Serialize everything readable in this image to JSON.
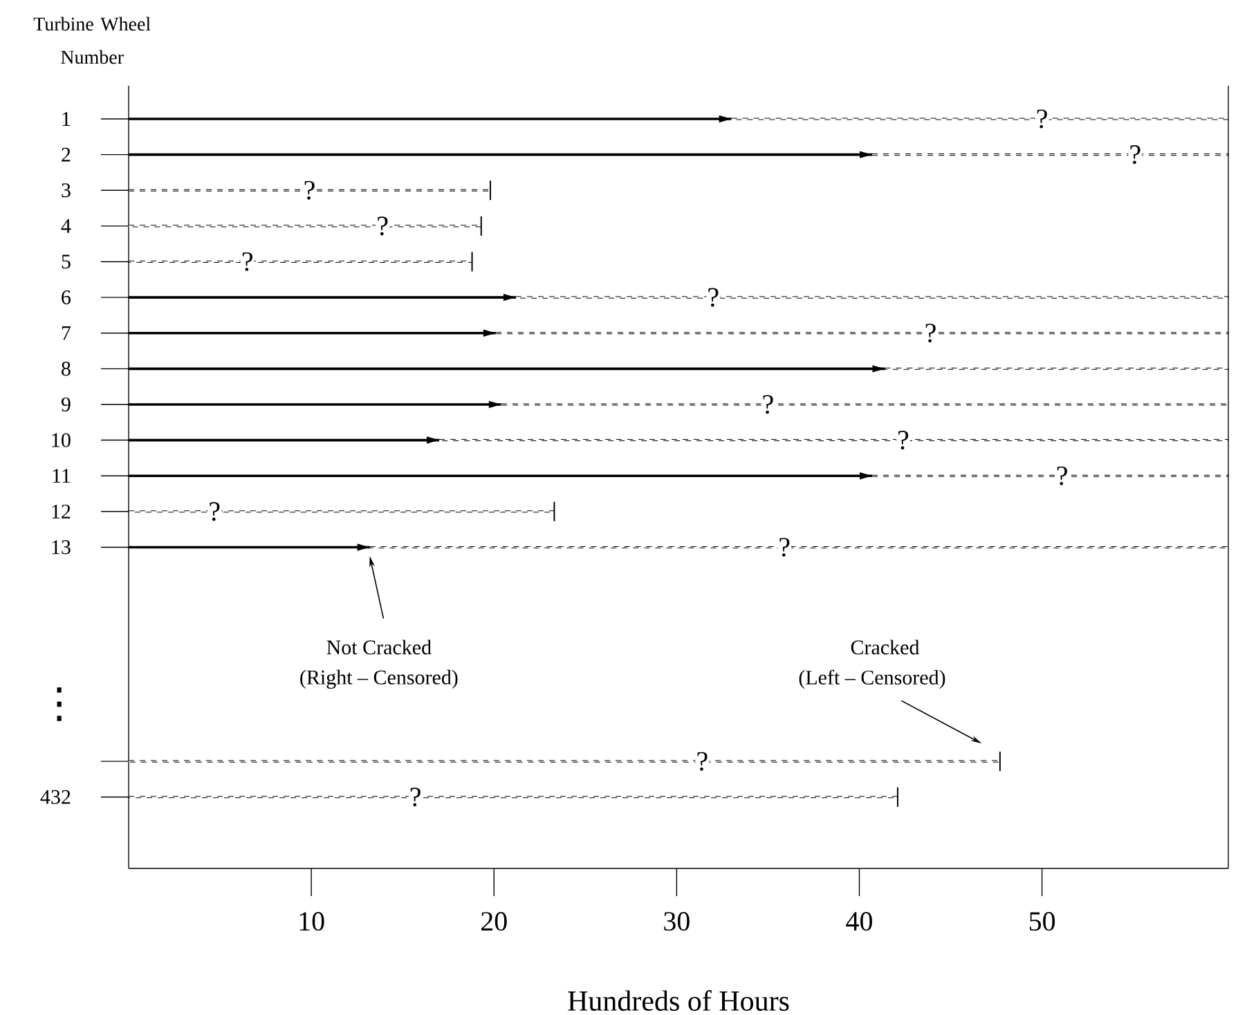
{
  "chart_data": {
    "type": "bar",
    "orientation": "horizontal",
    "stacked": true,
    "xlabel": "Hundreds of Hours",
    "ylabel": "Turbine Wheel Number",
    "categories": [
      "1",
      "2",
      "3",
      "4",
      "5",
      "6",
      "7",
      "8",
      "9",
      "10",
      "11",
      "12",
      "13",
      null,
      null,
      null,
      null,
      null,
      null,
      "432"
    ],
    "series": [
      {
        "color": "#000000",
        "line_style": "solid",
        "values": [
          33.0,
          40.7,
          null,
          null,
          null,
          21.2,
          20.1,
          41.4,
          20.4,
          17.0,
          40.7,
          null,
          13.2,
          null,
          null,
          null,
          null,
          null,
          null,
          null
        ]
      },
      {
        "color": "#000000",
        "line_style": "dashed",
        "values": [
          27.2,
          19.5,
          19.8,
          19.3,
          18.8,
          39.0,
          40.1,
          18.8,
          39.8,
          43.2,
          19.5,
          23.3,
          47.0,
          null,
          null,
          null,
          null,
          null,
          47.7,
          42.1
        ]
      }
    ],
    "xlim": [
      0,
      60.2
    ],
    "xticks": [
      10,
      20,
      30,
      40,
      50
    ],
    "annotations": [
      {
        "text": "?",
        "x": 50.0,
        "y": "1"
      },
      {
        "text": "?",
        "x": 55.1,
        "y": "2"
      },
      {
        "text": "?",
        "x": 9.9,
        "y": "3"
      },
      {
        "text": "?",
        "x": 13.9,
        "y": "4"
      },
      {
        "text": "?",
        "x": 6.5,
        "y": "5"
      },
      {
        "text": "?",
        "x": 32.0,
        "y": "6"
      },
      {
        "text": "?",
        "x": 43.9,
        "y": "7"
      },
      {
        "text": "?",
        "x": 35.0,
        "y": "9"
      },
      {
        "text": "?",
        "x": 42.4,
        "y": "10"
      },
      {
        "text": "?",
        "x": 51.1,
        "y": "11"
      },
      {
        "text": "?",
        "x": 4.7,
        "y": "12"
      },
      {
        "text": "?",
        "x": 35.9,
        "y": "13"
      },
      {
        "text": "?",
        "x": 31.4
      },
      {
        "text": "?",
        "x": 15.7,
        "y": "432"
      },
      "Not Cracked",
      "(Right – Censored)",
      "Cracked",
      "(Left – Censored)",
      "⋮"
    ]
  }
}
